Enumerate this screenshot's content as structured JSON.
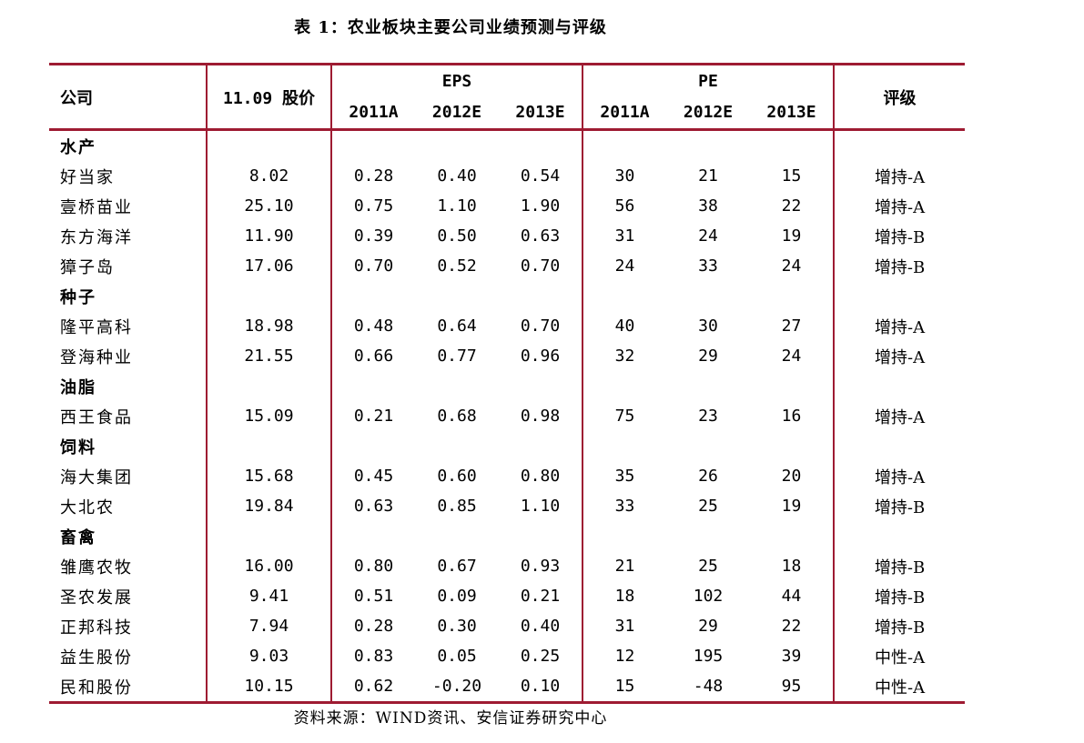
{
  "caption": "表 1：农业板块主要公司业绩预测与评级",
  "source": "资料来源：WIND资讯、安信证券研究中心",
  "header": {
    "company": "公司",
    "price": "11.09 股价",
    "eps": "EPS",
    "pe": "PE",
    "rating": "评级",
    "years": [
      "2011A",
      "2012E",
      "2013E"
    ]
  },
  "groups": [
    {
      "category": "水产",
      "rows": [
        {
          "name": "好当家",
          "price": "8.02",
          "eps": [
            "0.28",
            "0.40",
            "0.54"
          ],
          "pe": [
            "30",
            "21",
            "15"
          ],
          "rating": "增持-A"
        },
        {
          "name": "壹桥苗业",
          "price": "25.10",
          "eps": [
            "0.75",
            "1.10",
            "1.90"
          ],
          "pe": [
            "56",
            "38",
            "22"
          ],
          "rating": "增持-A"
        },
        {
          "name": "东方海洋",
          "price": "11.90",
          "eps": [
            "0.39",
            "0.50",
            "0.63"
          ],
          "pe": [
            "31",
            "24",
            "19"
          ],
          "rating": "增持-B"
        },
        {
          "name": "獐子岛",
          "price": "17.06",
          "eps": [
            "0.70",
            "0.52",
            "0.70"
          ],
          "pe": [
            "24",
            "33",
            "24"
          ],
          "rating": "增持-B"
        }
      ]
    },
    {
      "category": "种子",
      "rows": [
        {
          "name": "隆平高科",
          "price": "18.98",
          "eps": [
            "0.48",
            "0.64",
            "0.70"
          ],
          "pe": [
            "40",
            "30",
            "27"
          ],
          "rating": "增持-A"
        },
        {
          "name": "登海种业",
          "price": "21.55",
          "eps": [
            "0.66",
            "0.77",
            "0.96"
          ],
          "pe": [
            "32",
            "29",
            "24"
          ],
          "rating": "增持-A"
        }
      ]
    },
    {
      "category": "油脂",
      "rows": [
        {
          "name": "西王食品",
          "price": "15.09",
          "eps": [
            "0.21",
            "0.68",
            "0.98"
          ],
          "pe": [
            "75",
            "23",
            "16"
          ],
          "rating": "增持-A"
        }
      ]
    },
    {
      "category": "饲料",
      "rows": [
        {
          "name": "海大集团",
          "price": "15.68",
          "eps": [
            "0.45",
            "0.60",
            "0.80"
          ],
          "pe": [
            "35",
            "26",
            "20"
          ],
          "rating": "增持-A"
        },
        {
          "name": "大北农",
          "price": "19.84",
          "eps": [
            "0.63",
            "0.85",
            "1.10"
          ],
          "pe": [
            "33",
            "25",
            "19"
          ],
          "rating": "增持-B"
        }
      ]
    },
    {
      "category": "畜禽",
      "rows": [
        {
          "name": "雏鹰农牧",
          "price": "16.00",
          "eps": [
            "0.80",
            "0.67",
            "0.93"
          ],
          "pe": [
            "21",
            "25",
            "18"
          ],
          "rating": "增持-B"
        },
        {
          "name": "圣农发展",
          "price": "9.41",
          "eps": [
            "0.51",
            "0.09",
            "0.21"
          ],
          "pe": [
            "18",
            "102",
            "44"
          ],
          "rating": "增持-B"
        },
        {
          "name": "正邦科技",
          "price": "7.94",
          "eps": [
            "0.28",
            "0.30",
            "0.40"
          ],
          "pe": [
            "31",
            "29",
            "22"
          ],
          "rating": "增持-B"
        },
        {
          "name": "益生股份",
          "price": "9.03",
          "eps": [
            "0.83",
            "0.05",
            "0.25"
          ],
          "pe": [
            "12",
            "195",
            "39"
          ],
          "rating": "中性-A"
        },
        {
          "name": "民和股份",
          "price": "10.15",
          "eps": [
            "0.62",
            "-0.20",
            "0.10"
          ],
          "pe": [
            "15",
            "-48",
            "95"
          ],
          "rating": "中性-A"
        }
      ]
    }
  ]
}
